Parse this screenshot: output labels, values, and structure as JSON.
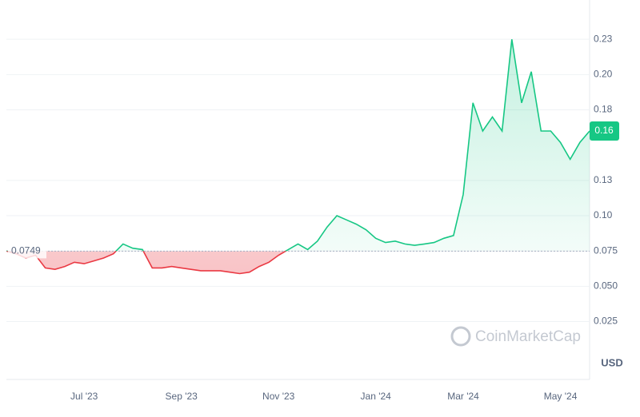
{
  "chart_data": {
    "type": "line",
    "categories": [
      null,
      null,
      null,
      null,
      null,
      null,
      null,
      null,
      "Jul '23",
      null,
      null,
      null,
      null,
      null,
      null,
      null,
      null,
      null,
      "Sep '23",
      null,
      null,
      null,
      null,
      null,
      null,
      null,
      null,
      null,
      "Nov '23",
      null,
      null,
      null,
      null,
      null,
      null,
      null,
      null,
      null,
      "Jan '24",
      null,
      null,
      null,
      null,
      null,
      null,
      null,
      null,
      "Mar '24",
      null,
      null,
      null,
      null,
      null,
      null,
      null,
      null,
      null,
      "May '24",
      null,
      null,
      null
    ],
    "values": [
      0.075,
      0.073,
      0.07,
      0.072,
      0.063,
      0.062,
      0.064,
      0.067,
      0.066,
      0.068,
      0.07,
      0.073,
      0.08,
      0.077,
      0.076,
      0.063,
      0.063,
      0.064,
      0.063,
      0.062,
      0.061,
      0.061,
      0.061,
      0.06,
      0.059,
      0.06,
      0.064,
      0.067,
      0.072,
      0.076,
      0.08,
      0.076,
      0.082,
      0.092,
      0.1,
      0.097,
      0.094,
      0.09,
      0.084,
      0.081,
      0.082,
      0.08,
      0.079,
      0.08,
      0.081,
      0.084,
      0.086,
      0.115,
      0.18,
      0.16,
      0.17,
      0.16,
      0.225,
      0.18,
      0.202,
      0.16,
      0.16,
      0.152,
      0.14,
      0.152,
      0.16
    ],
    "baseline": 0.0749,
    "up_color": "#16c784",
    "down_color": "#ea3943",
    "ylim": [
      -0.016,
      0.25
    ],
    "yticks": [
      {
        "value": 0.025,
        "label": "0.025"
      },
      {
        "value": 0.05,
        "label": "0.050"
      },
      {
        "value": 0.075,
        "label": "0.075"
      },
      {
        "value": 0.1,
        "label": "0.10"
      },
      {
        "value": 0.125,
        "label": "0.13"
      },
      {
        "value": 0.175,
        "label": "0.18"
      },
      {
        "value": 0.2,
        "label": "0.20"
      },
      {
        "value": 0.225,
        "label": "0.23"
      }
    ],
    "currency": "USD",
    "watermark": "CoinMarketCap",
    "grid": true
  }
}
